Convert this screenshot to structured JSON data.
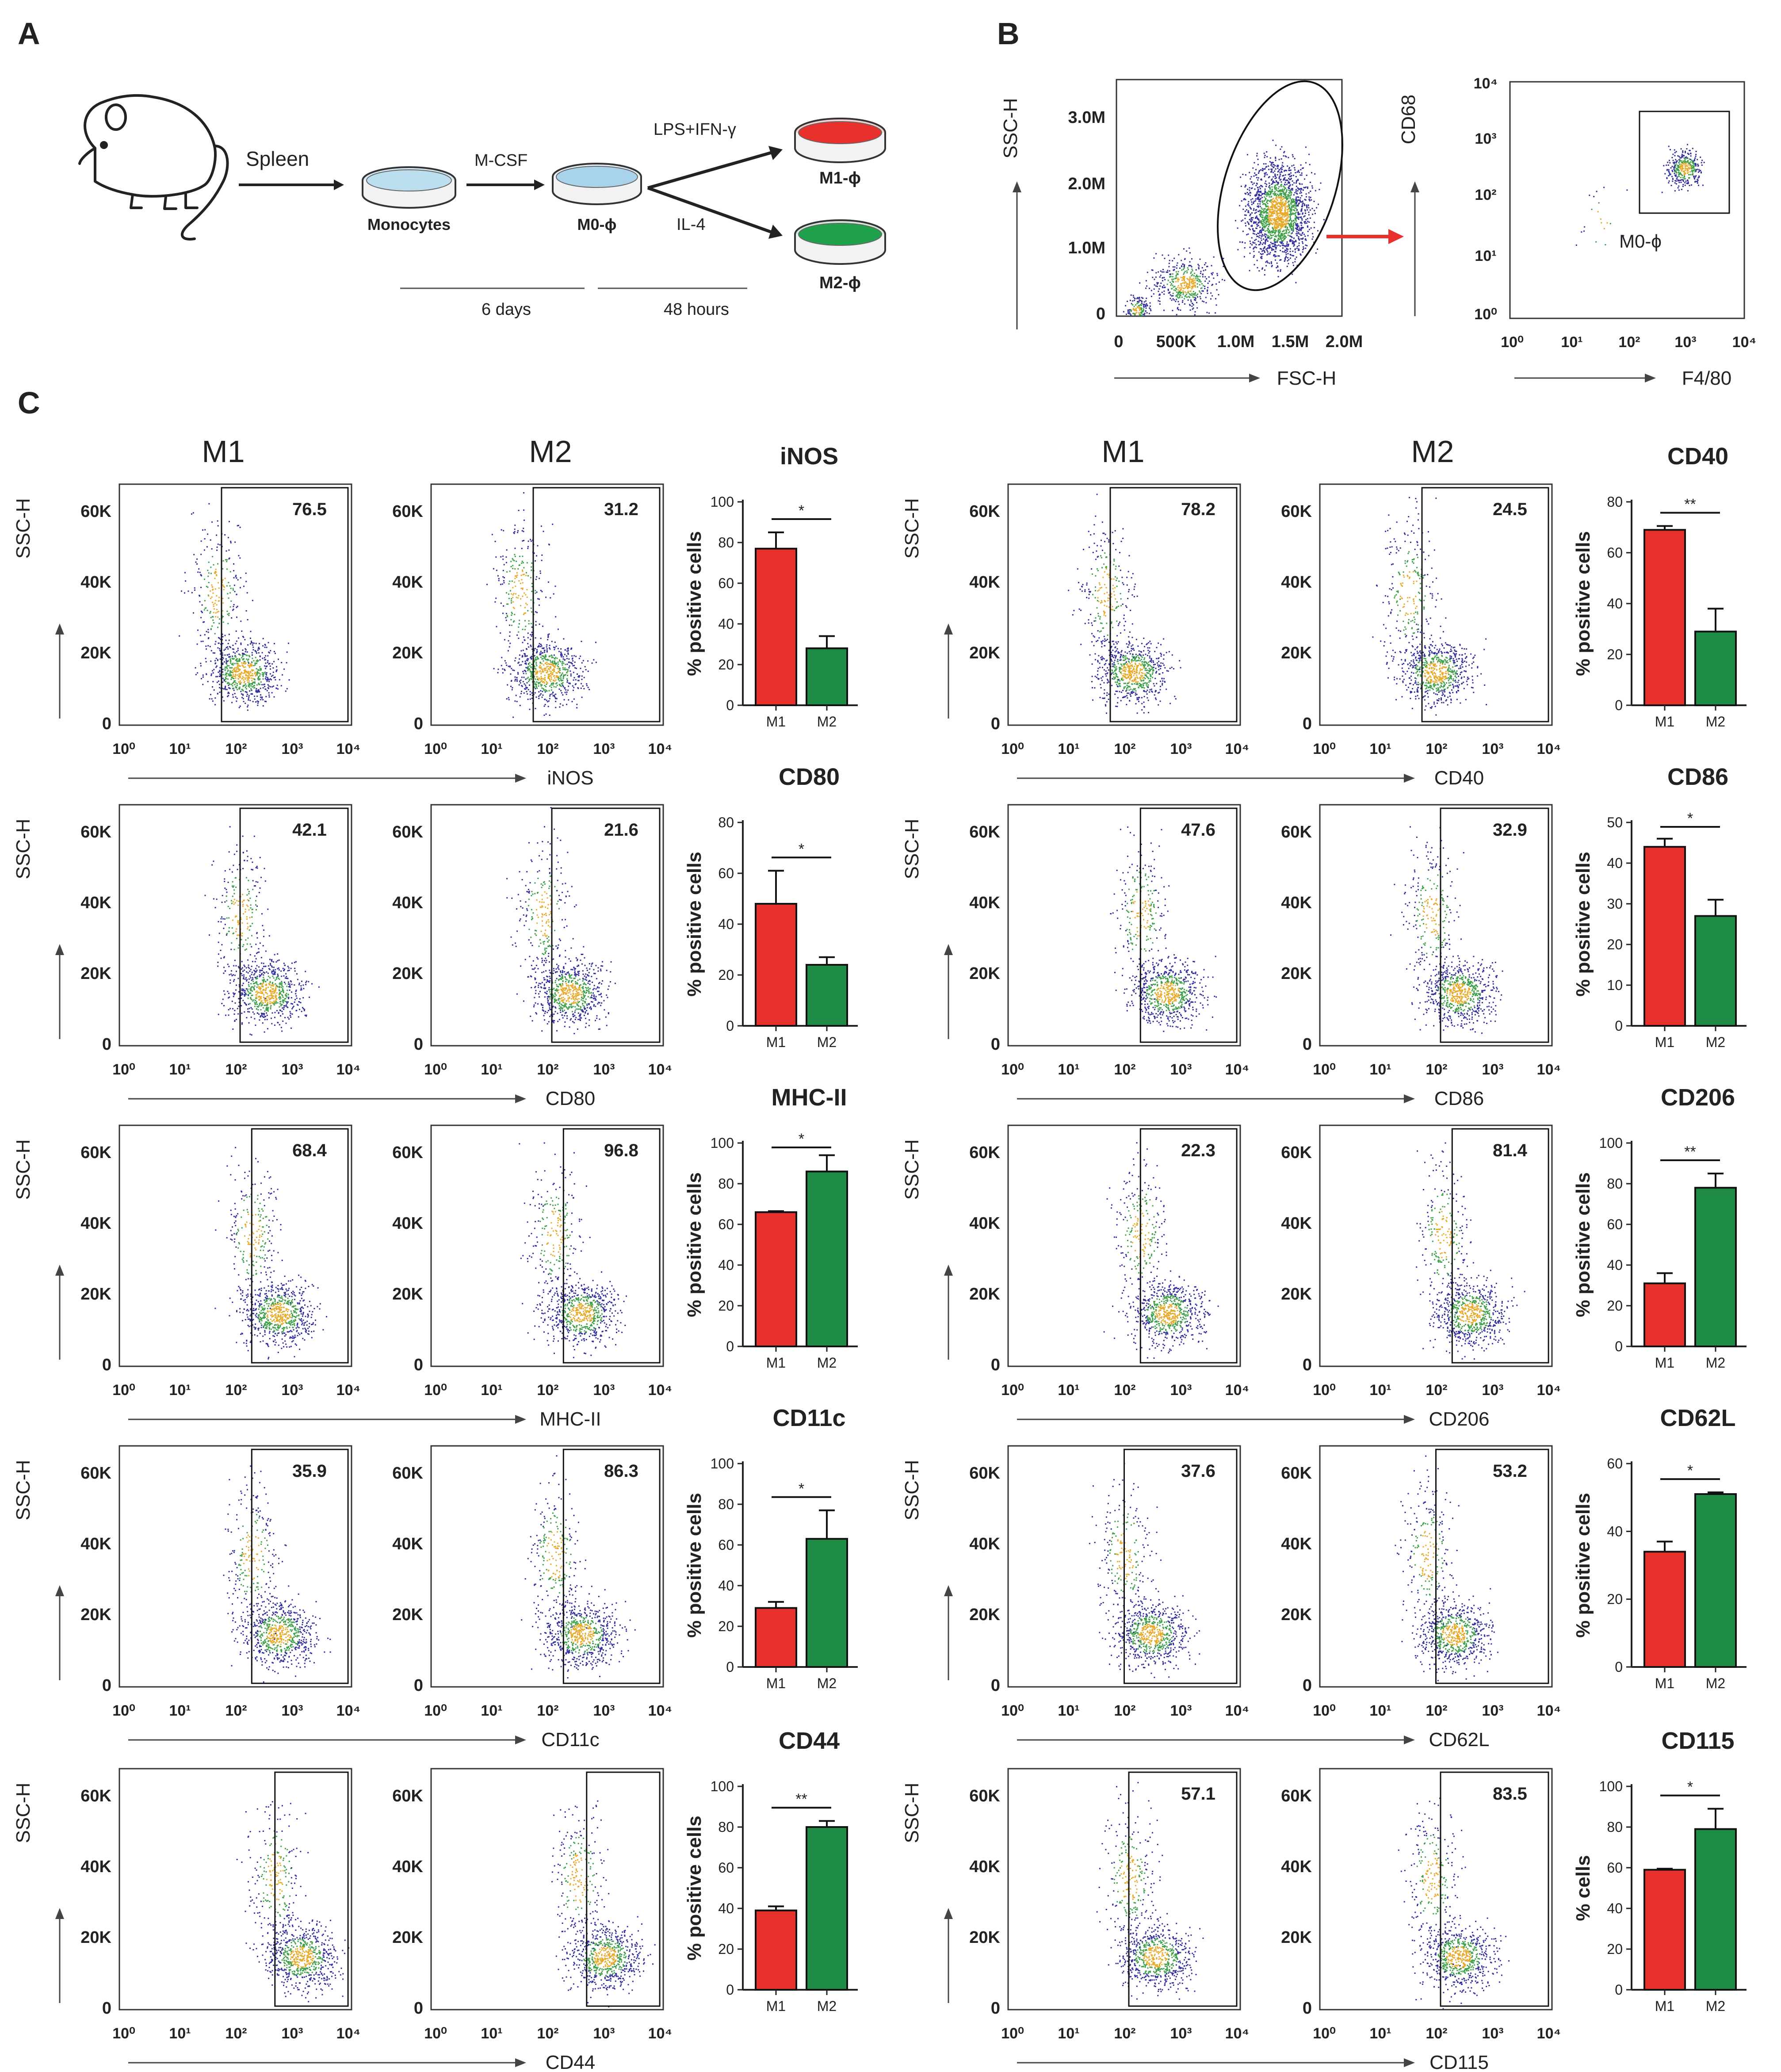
{
  "colors": {
    "m1": "#e8312d",
    "m2": "#1e8c45",
    "dish_m0": "#a9d3ea",
    "dish_m1": "#e8312d",
    "dish_m2": "#1ea14a",
    "arrow_red": "#e8312d",
    "dot_blue": "#33309e",
    "dot_hot": "#e7aa2b"
  },
  "panel_a": {
    "letter": "A",
    "spleen": "Spleen",
    "mcsf": "M-CSF",
    "lps": "LPS+IFN-γ",
    "il4": "IL-4",
    "monocytes": "Monocytes",
    "m0": "M0-ϕ",
    "m1": "M1-ϕ",
    "m2": "M2-ϕ",
    "days": "6 days",
    "hours": "48 hours"
  },
  "panel_b": {
    "letter": "B",
    "scatter": {
      "ylabel": "SSC-H",
      "xlabel": "FSC-H",
      "x_ticks": [
        "0",
        "500K",
        "1.0M",
        "1.5M",
        "2.0M"
      ],
      "y_ticks": [
        "0",
        "1.0M",
        "2.0M",
        "3.0M"
      ]
    },
    "gate_plot": {
      "ylabel": "CD68",
      "xlabel": "F4/80",
      "x_ticks": [
        "10⁰",
        "10¹",
        "10²",
        "10³",
        "10⁴"
      ],
      "y_ticks": [
        "10⁰",
        "10¹",
        "10²",
        "10³",
        "10⁴"
      ],
      "gate_label": "M0-ϕ"
    }
  },
  "panel_c": {
    "letter": "C",
    "col_m1": "M1",
    "col_m2": "M2",
    "flow_ylabel": "SSC-H",
    "flow_y_ticks": [
      "0",
      "20K",
      "40K",
      "60K"
    ],
    "flow_x_ticks": [
      "10⁰",
      "10¹",
      "10²",
      "10³",
      "10⁴"
    ],
    "bar_ylabel": "% positive cells",
    "bar_ylabel_alt": "% positive cells",
    "bar_cats": [
      "M1",
      "M2"
    ]
  },
  "chart_data": [
    {
      "type": "bar",
      "title": "iNOS",
      "categories": [
        "M1",
        "M2"
      ],
      "values": [
        77,
        28
      ],
      "errors": [
        8,
        6
      ],
      "ylim": [
        0,
        100
      ],
      "yticks": [
        "0",
        "20",
        "40",
        "60",
        "80",
        "100"
      ],
      "significance": "*",
      "ylabel": "% positive cells",
      "flow": {
        "marker": "iNOS",
        "m1_pct": "76.5",
        "m2_pct": "31.2"
      }
    },
    {
      "type": "bar",
      "title": "CD40",
      "categories": [
        "M1",
        "M2"
      ],
      "values": [
        69,
        29
      ],
      "errors": [
        1.5,
        9
      ],
      "ylim": [
        0,
        80
      ],
      "yticks": [
        "0",
        "20",
        "40",
        "60",
        "80"
      ],
      "significance": "**",
      "ylabel": "% positive cells",
      "flow": {
        "marker": "CD40",
        "m1_pct": "78.2",
        "m2_pct": "24.5"
      }
    },
    {
      "type": "bar",
      "title": "CD80",
      "categories": [
        "M1",
        "M2"
      ],
      "values": [
        48,
        24
      ],
      "errors": [
        13,
        3
      ],
      "ylim": [
        0,
        80
      ],
      "yticks": [
        "0",
        "20",
        "40",
        "60",
        "80"
      ],
      "significance": "*",
      "ylabel": "% positive cells",
      "flow": {
        "marker": "CD80",
        "m1_pct": "42.1",
        "m2_pct": "21.6"
      }
    },
    {
      "type": "bar",
      "title": "CD86",
      "categories": [
        "M1",
        "M2"
      ],
      "values": [
        44,
        27
      ],
      "errors": [
        2,
        4
      ],
      "ylim": [
        0,
        50
      ],
      "yticks": [
        "0",
        "10",
        "20",
        "30",
        "40",
        "50"
      ],
      "significance": "*",
      "ylabel": "% positive cells",
      "flow": {
        "marker": "CD86",
        "m1_pct": "47.6",
        "m2_pct": "32.9"
      }
    },
    {
      "type": "bar",
      "title": "MHC-II",
      "categories": [
        "M1",
        "M2"
      ],
      "values": [
        66,
        86
      ],
      "errors": [
        0.5,
        8
      ],
      "ylim": [
        0,
        100
      ],
      "yticks": [
        "0",
        "20",
        "40",
        "60",
        "80",
        "100"
      ],
      "significance": "*",
      "ylabel": "% positive cells",
      "flow": {
        "marker": "MHC-II",
        "m1_pct": "68.4",
        "m2_pct": "96.8"
      }
    },
    {
      "type": "bar",
      "title": "CD206",
      "categories": [
        "M1",
        "M2"
      ],
      "values": [
        31,
        78
      ],
      "errors": [
        5,
        7
      ],
      "ylim": [
        0,
        100
      ],
      "yticks": [
        "0",
        "20",
        "40",
        "60",
        "80",
        "100"
      ],
      "significance": "**",
      "ylabel": "% positive cells",
      "flow": {
        "marker": "CD206",
        "m1_pct": "22.3",
        "m2_pct": "81.4"
      }
    },
    {
      "type": "bar",
      "title": "CD11c",
      "categories": [
        "M1",
        "M2"
      ],
      "values": [
        29,
        63
      ],
      "errors": [
        3,
        14
      ],
      "ylim": [
        0,
        100
      ],
      "yticks": [
        "0",
        "20",
        "40",
        "60",
        "80",
        "100"
      ],
      "significance": "*",
      "ylabel": "% positive cells",
      "flow": {
        "marker": "CD11c",
        "m1_pct": "35.9",
        "m2_pct": "86.3"
      }
    },
    {
      "type": "bar",
      "title": "CD62L",
      "categories": [
        "M1",
        "M2"
      ],
      "values": [
        34,
        51
      ],
      "errors": [
        3,
        0.5
      ],
      "ylim": [
        0,
        60
      ],
      "yticks": [
        "0",
        "20",
        "40",
        "60"
      ],
      "significance": "*",
      "ylabel": "% positive cells",
      "flow": {
        "marker": "CD62L",
        "m1_pct": "37.6",
        "m2_pct": "53.2"
      }
    },
    {
      "type": "bar",
      "title": "CD44",
      "categories": [
        "M1",
        "M2"
      ],
      "values": [
        39,
        80
      ],
      "errors": [
        2,
        3
      ],
      "ylim": [
        0,
        100
      ],
      "yticks": [
        "0",
        "20",
        "40",
        "60",
        "80",
        "100"
      ],
      "significance": "**",
      "ylabel": "% positive cells",
      "flow": {
        "marker": "CD44",
        "m1_pct": "",
        "m2_pct": ""
      }
    },
    {
      "type": "bar",
      "title": "CD115",
      "categories": [
        "M1",
        "M2"
      ],
      "values": [
        59,
        79
      ],
      "errors": [
        0.5,
        10
      ],
      "ylim": [
        0,
        100
      ],
      "yticks": [
        "0",
        "20",
        "40",
        "60",
        "80",
        "100"
      ],
      "significance": "*",
      "ylabel": "% cells",
      "flow": {
        "marker": "CD115",
        "m1_pct": "57.1",
        "m2_pct": "83.5"
      }
    }
  ]
}
